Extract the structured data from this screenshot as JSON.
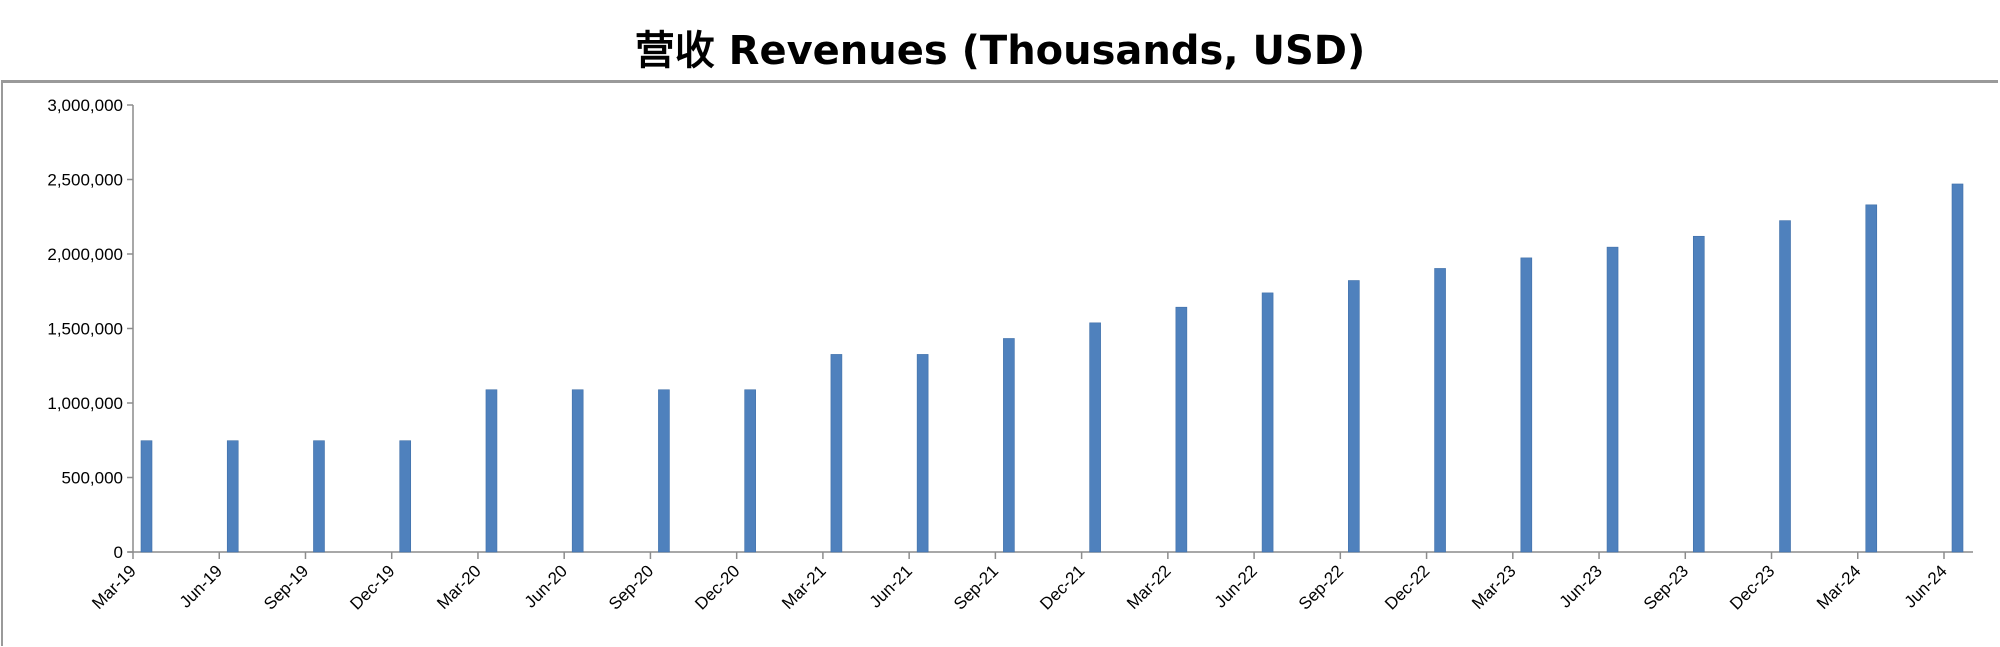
{
  "chart_data": {
    "type": "bar",
    "title": "营收 Revenues (Thousands, USD)",
    "xlabel": "",
    "ylabel": "",
    "ylim": [
      0,
      3000000
    ],
    "yticks": [
      "0",
      "500,000",
      "1,000,000",
      "1,500,000",
      "2,000,000",
      "2,500,000",
      "3,000,000"
    ],
    "ytick_values": [
      0,
      500000,
      1000000,
      1500000,
      2000000,
      2500000,
      3000000
    ],
    "grid": false,
    "legend": "none",
    "bar_color": "#4f81bd",
    "categories": [
      "Mar-19",
      "Jun-19",
      "Sep-19",
      "Dec-19",
      "Mar-20",
      "Jun-20",
      "Sep-20",
      "Dec-20",
      "Mar-21",
      "Jun-21",
      "Sep-21",
      "Dec-21",
      "Mar-22",
      "Jun-22",
      "Sep-22",
      "Dec-22",
      "Mar-23",
      "Jun-23",
      "Sep-23",
      "Dec-23",
      "Mar-24",
      "Jun-24"
    ],
    "values": [
      747000,
      747000,
      747000,
      747000,
      1089000,
      1089000,
      1089000,
      1089000,
      1326000,
      1326000,
      1433000,
      1538000,
      1643000,
      1739000,
      1822000,
      1903000,
      1974000,
      2046000,
      2119000,
      2224000,
      2330000,
      2470000
    ]
  }
}
